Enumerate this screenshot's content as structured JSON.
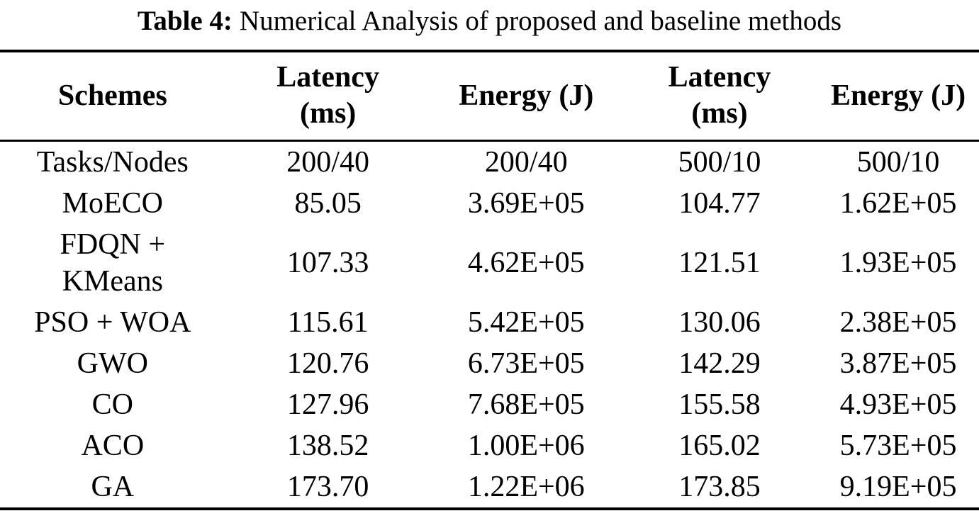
{
  "caption": {
    "label": "Table 4:",
    "text": "Numerical Analysis of proposed and baseline methods"
  },
  "table": {
    "columns": [
      "Schemes",
      "Latency\n(ms)",
      "Energy (J)",
      "Latency\n(ms)",
      "Energy (J)"
    ],
    "rows": [
      {
        "scheme": "Tasks/Nodes",
        "values": [
          "200/40",
          "200/40",
          "500/10",
          "500/10"
        ]
      },
      {
        "scheme": "MoECO",
        "values": [
          "85.05",
          "3.69E+05",
          "104.77",
          "1.62E+05"
        ]
      },
      {
        "scheme": "FDQN +\nKMeans",
        "values": [
          "107.33",
          "4.62E+05",
          "121.51",
          "1.93E+05"
        ]
      },
      {
        "scheme": "PSO + WOA",
        "values": [
          "115.61",
          "5.42E+05",
          "130.06",
          "2.38E+05"
        ]
      },
      {
        "scheme": "GWO",
        "values": [
          "120.76",
          "6.73E+05",
          "142.29",
          "3.87E+05"
        ]
      },
      {
        "scheme": "CO",
        "values": [
          "127.96",
          "7.68E+05",
          "155.58",
          "4.93E+05"
        ]
      },
      {
        "scheme": "ACO",
        "values": [
          "138.52",
          "1.00E+06",
          "165.02",
          "5.73E+05"
        ]
      },
      {
        "scheme": "GA",
        "values": [
          "173.70",
          "1.22E+06",
          "173.85",
          "9.19E+05"
        ]
      }
    ]
  }
}
